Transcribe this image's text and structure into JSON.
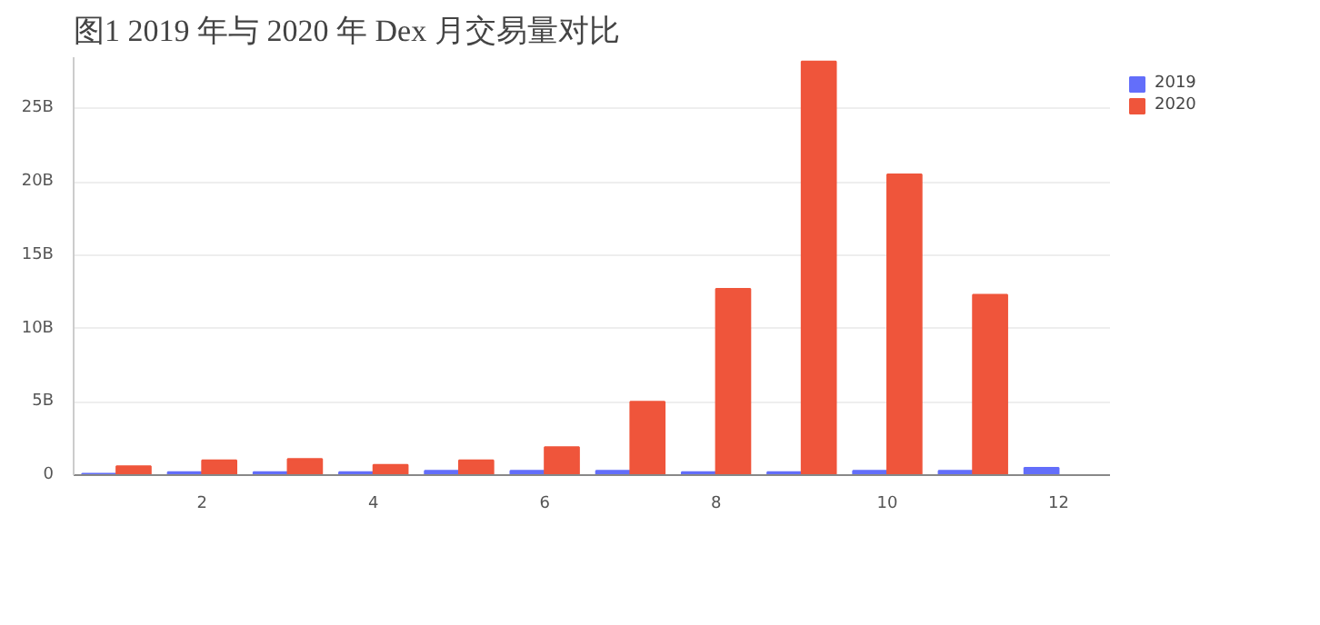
{
  "chart_data": {
    "type": "bar",
    "title": "图1   2019 年与 2020 年 Dex 月交易量对比",
    "x": [
      1,
      2,
      3,
      4,
      5,
      6,
      7,
      8,
      9,
      10,
      11,
      12
    ],
    "series": [
      {
        "name": "2019",
        "color": "#636efa",
        "values": [
          0.1,
          0.2,
          0.2,
          0.2,
          0.3,
          0.3,
          0.3,
          0.2,
          0.2,
          0.3,
          0.3,
          0.5
        ]
      },
      {
        "name": "2020",
        "color": "#ef553b",
        "values": [
          0.6,
          1.0,
          1.1,
          0.7,
          1.0,
          1.9,
          5.0,
          12.7,
          28.2,
          20.5,
          12.3,
          null
        ]
      }
    ],
    "xlim": [
      0.5,
      12.6
    ],
    "xticks": [
      2,
      4,
      6,
      8,
      10,
      12
    ],
    "ylim": [
      0,
      28.5
    ],
    "yticks": [
      {
        "value": 0,
        "label": "0"
      },
      {
        "value": 5,
        "label": "5B"
      },
      {
        "value": 10,
        "label": "10B"
      },
      {
        "value": 15,
        "label": "15B"
      },
      {
        "value": 20,
        "label": "20B"
      },
      {
        "value": 25,
        "label": "25B"
      }
    ],
    "grid": "y",
    "legend": "top right"
  }
}
